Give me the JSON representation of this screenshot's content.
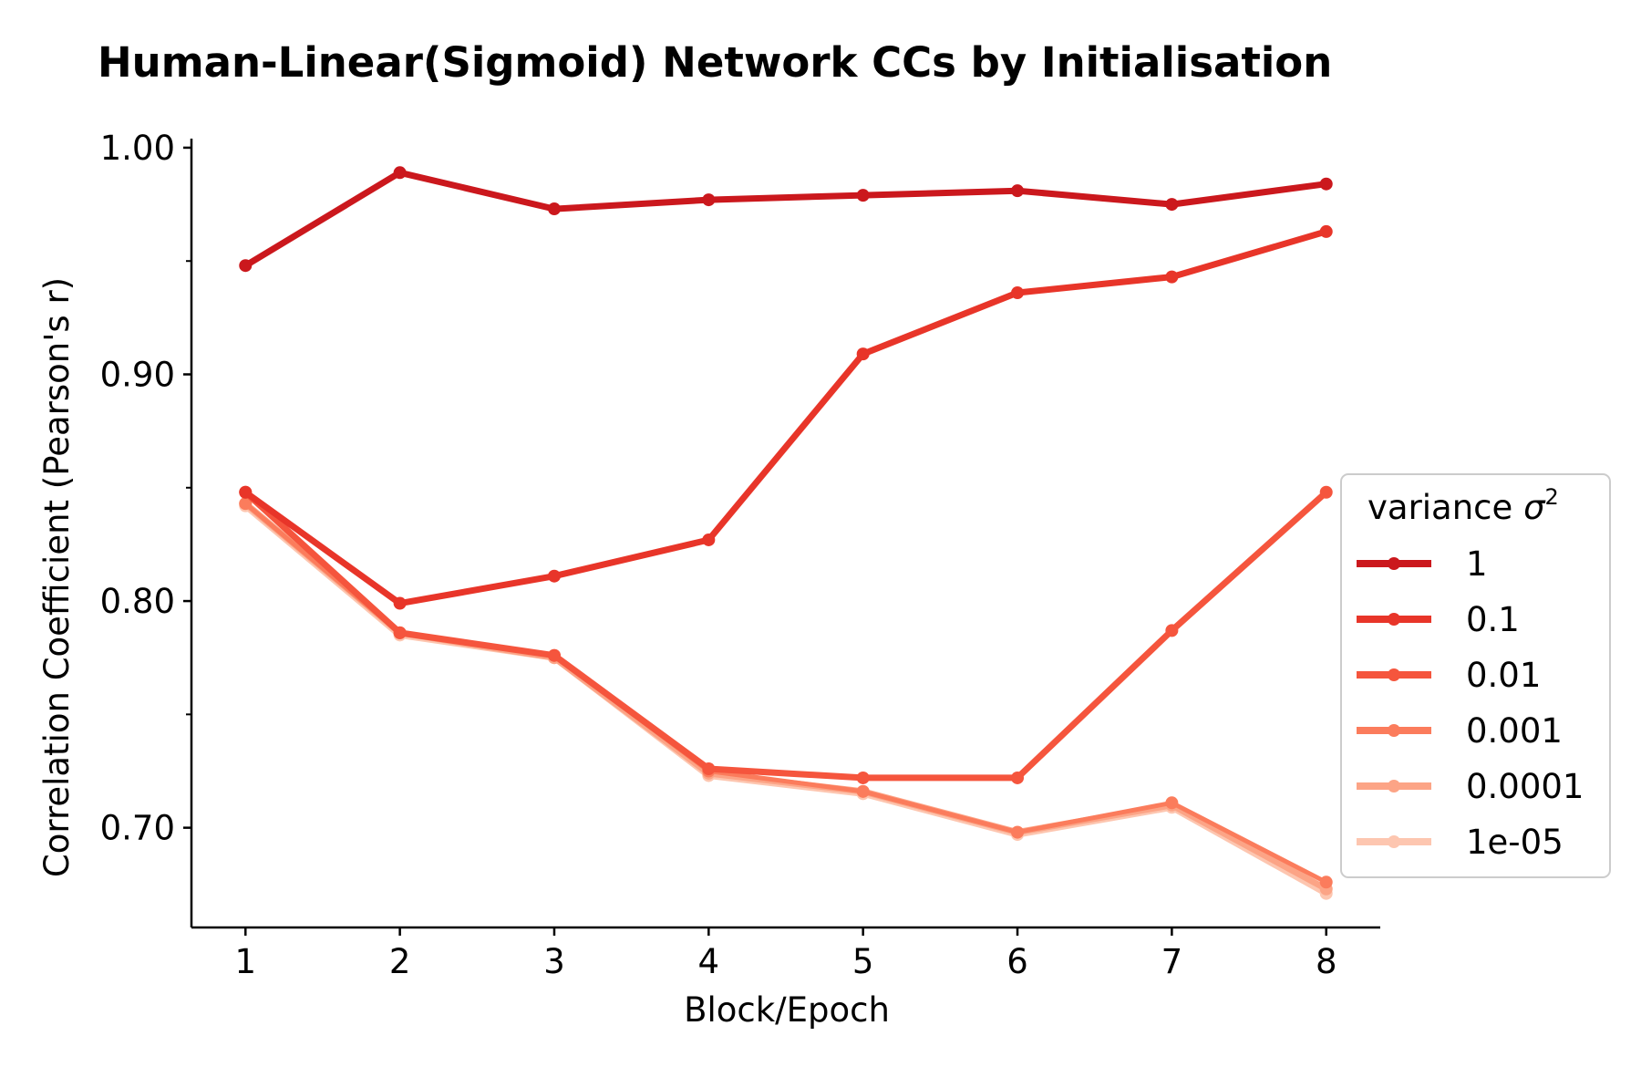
{
  "chart_data": {
    "type": "line",
    "title": "Human-Linear(Sigmoid) Network CCs by Initialisation",
    "xlabel": "Block/Epoch",
    "ylabel": "Correlation Coefficient (Pearson's r)",
    "x": [
      1,
      2,
      3,
      4,
      5,
      6,
      7,
      8
    ],
    "x_tick_labels": [
      "1",
      "2",
      "3",
      "4",
      "5",
      "6",
      "7",
      "8"
    ],
    "y_tick_labels": [
      "1.00",
      "0.90",
      "0.80",
      "0.70"
    ],
    "y_ticks": [
      1.0,
      0.9,
      0.8,
      0.7
    ],
    "y_minor_ticks": [
      0.95,
      0.85,
      0.75
    ],
    "xlim": [
      0.65,
      8.35
    ],
    "ylim": [
      0.656,
      1.004
    ],
    "grid": false,
    "legend": {
      "title_prefix": "variance ",
      "title_symbol": "σ",
      "title_superscript": "2",
      "placement": "center-right"
    },
    "series": [
      {
        "name": "1",
        "color": "#cb181d",
        "values": [
          0.948,
          0.989,
          0.973,
          0.977,
          0.979,
          0.981,
          0.975,
          0.984
        ]
      },
      {
        "name": "0.1",
        "color": "#e83529",
        "values": [
          0.848,
          0.799,
          0.811,
          0.827,
          0.909,
          0.936,
          0.943,
          0.963
        ]
      },
      {
        "name": "0.01",
        "color": "#f5553d",
        "values": [
          0.848,
          0.786,
          0.776,
          0.726,
          0.722,
          0.722,
          0.787,
          0.848
        ]
      },
      {
        "name": "0.001",
        "color": "#fb7c5c",
        "values": [
          0.843,
          0.786,
          0.776,
          0.725,
          0.716,
          0.698,
          0.711,
          0.676
        ]
      },
      {
        "name": "0.0001",
        "color": "#fca486",
        "values": [
          0.843,
          0.786,
          0.775,
          0.724,
          0.716,
          0.698,
          0.71,
          0.673
        ]
      },
      {
        "name": "1e-05",
        "color": "#fdc6b0",
        "values": [
          0.842,
          0.785,
          0.775,
          0.723,
          0.715,
          0.697,
          0.709,
          0.671
        ]
      }
    ]
  }
}
